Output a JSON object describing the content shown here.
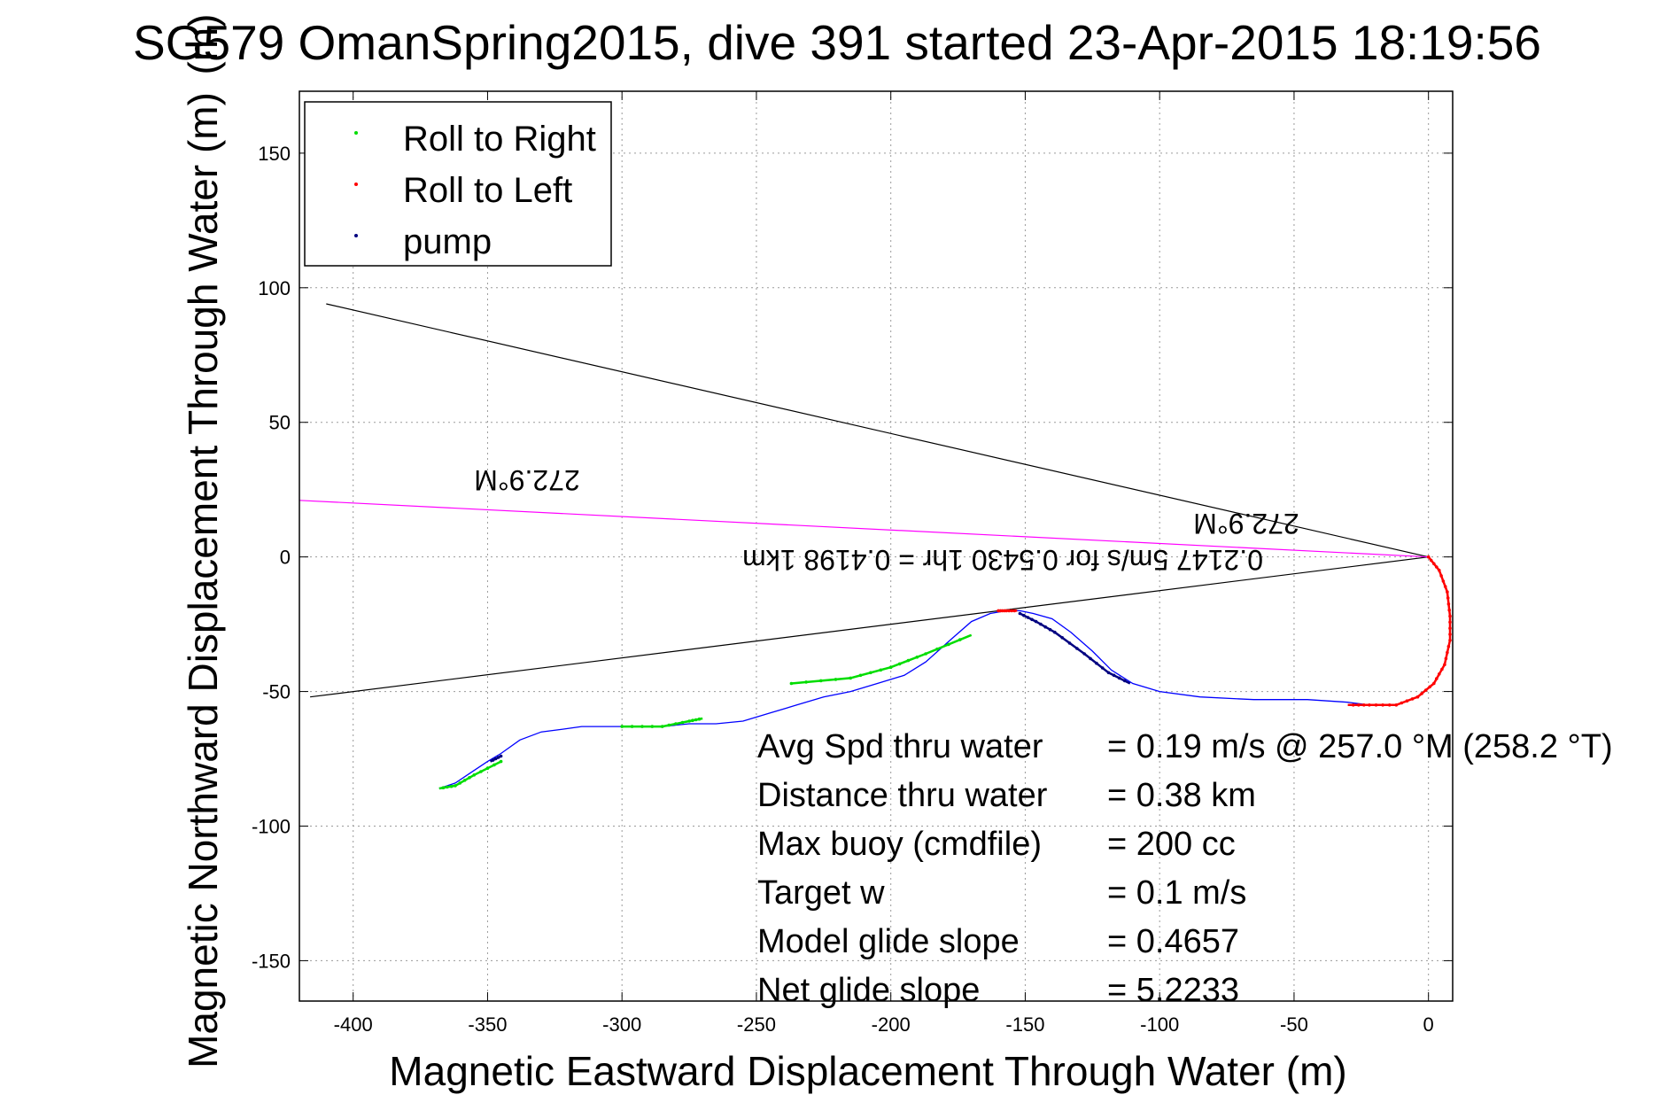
{
  "chart_data": {
    "type": "line",
    "title": "SG579 OmanSpring2015, dive 391 started 23-Apr-2015 18:19:56",
    "title_overlay": "(m)",
    "xlabel": "Magnetic Eastward Displacement Through Water (m)",
    "ylabel": "Magnetic Northward Displacement Through Water (m)",
    "xlim": [
      -420,
      9
    ],
    "ylim": [
      -165,
      173
    ],
    "xticks": [
      -400,
      -350,
      -300,
      -250,
      -200,
      -150,
      -100,
      -50,
      0
    ],
    "yticks": [
      150,
      100,
      50,
      0,
      -50,
      -100,
      -150
    ],
    "grid": true,
    "legend_position": "top-left",
    "legend": [
      {
        "label": "Roll to Right",
        "color": "#00dd00"
      },
      {
        "label": "Roll to Left",
        "color": "#ff0000"
      },
      {
        "label": "pump",
        "color": "#000080"
      }
    ],
    "colors": {
      "track": "#0000ff",
      "roll_right": "#00dd00",
      "roll_left": "#ff0000",
      "pump": "#000080",
      "bearing_lines": "#000000",
      "heading_line": "#ff00ff"
    },
    "track": {
      "x": [
        0,
        4,
        7,
        8,
        8,
        6,
        2,
        -4,
        -12,
        -22,
        -30,
        -45,
        -65,
        -85,
        -100,
        -110,
        -118,
        -125,
        -133,
        -140,
        -147,
        -152,
        -157,
        -163,
        -170,
        -178,
        -187,
        -195,
        -205,
        -215,
        -225,
        -235,
        -245,
        -255,
        -265,
        -275,
        -285,
        -295,
        -305,
        -315,
        -322,
        -330,
        -338,
        -345,
        -350,
        -356,
        -362,
        -368
      ],
      "y": [
        0,
        -5,
        -13,
        -22,
        -31,
        -40,
        -47,
        -52,
        -55,
        -55,
        -54,
        -53,
        -53,
        -52,
        -50,
        -47,
        -42,
        -35,
        -28,
        -23,
        -21,
        -20,
        -20,
        -21,
        -24,
        -31,
        -39,
        -44,
        -47,
        -50,
        -52,
        -55,
        -58,
        -61,
        -62,
        -62,
        -63,
        -63,
        -63,
        -63,
        -64,
        -65,
        -68,
        -73,
        -76,
        -80,
        -84,
        -86
      ]
    },
    "roll_right_segments": [
      {
        "x": [
          -237,
          -215,
          -200,
          -187,
          -170
        ],
        "y": [
          -47,
          -45,
          -41,
          -36,
          -29
        ]
      },
      {
        "x": [
          -300,
          -285,
          -275,
          -270
        ],
        "y": [
          -63,
          -63,
          -61,
          -60
        ]
      },
      {
        "x": [
          -345,
          -355,
          -362,
          -368
        ],
        "y": [
          -76,
          -81,
          -85,
          -86
        ]
      }
    ],
    "roll_left_segments": [
      {
        "x": [
          0,
          4,
          7,
          8,
          8,
          6,
          2,
          -4,
          -12,
          -22,
          -30
        ],
        "y": [
          0,
          -5,
          -13,
          -22,
          -31,
          -40,
          -47,
          -52,
          -55,
          -55,
          -55
        ]
      },
      {
        "x": [
          -160,
          -157,
          -153
        ],
        "y": [
          -20,
          -20,
          -20
        ]
      }
    ],
    "pump_segments": [
      {
        "x": [
          -152,
          -146,
          -139,
          -128,
          -119,
          -111
        ],
        "y": [
          -21,
          -24,
          -28,
          -36,
          -43,
          -47
        ]
      },
      {
        "x": [
          -345,
          -349
        ],
        "y": [
          -74,
          -76
        ]
      }
    ],
    "bearing_lines": [
      {
        "x": [
          0,
          -410
        ],
        "y": [
          0,
          94
        ]
      },
      {
        "x": [
          0,
          -416
        ],
        "y": [
          0,
          -52
        ]
      }
    ],
    "heading_line": {
      "x": [
        0,
        -420
      ],
      "y": [
        0,
        21
      ]
    },
    "annotations": {
      "heading_upper": "272.9°M",
      "heading_lower": "272.9°M",
      "speed": "0.2147 5m/s for 0.5430 1hr = 0.4198 1km"
    },
    "stats": [
      {
        "label": "Avg Spd thru water",
        "value": "=  0.19 m/s @ 257.0 °M (258.2 °T)"
      },
      {
        "label": "Distance thru water",
        "value": "=  0.38 km"
      },
      {
        "label": "Max buoy (cmdfile)",
        "value": "= 200 cc"
      },
      {
        "label": "Target w",
        "value": "= 0.1 m/s"
      },
      {
        "label": "Model glide slope",
        "value": "= 0.4657"
      },
      {
        "label": "Net glide slope",
        "value": "= 5.2233"
      }
    ]
  }
}
